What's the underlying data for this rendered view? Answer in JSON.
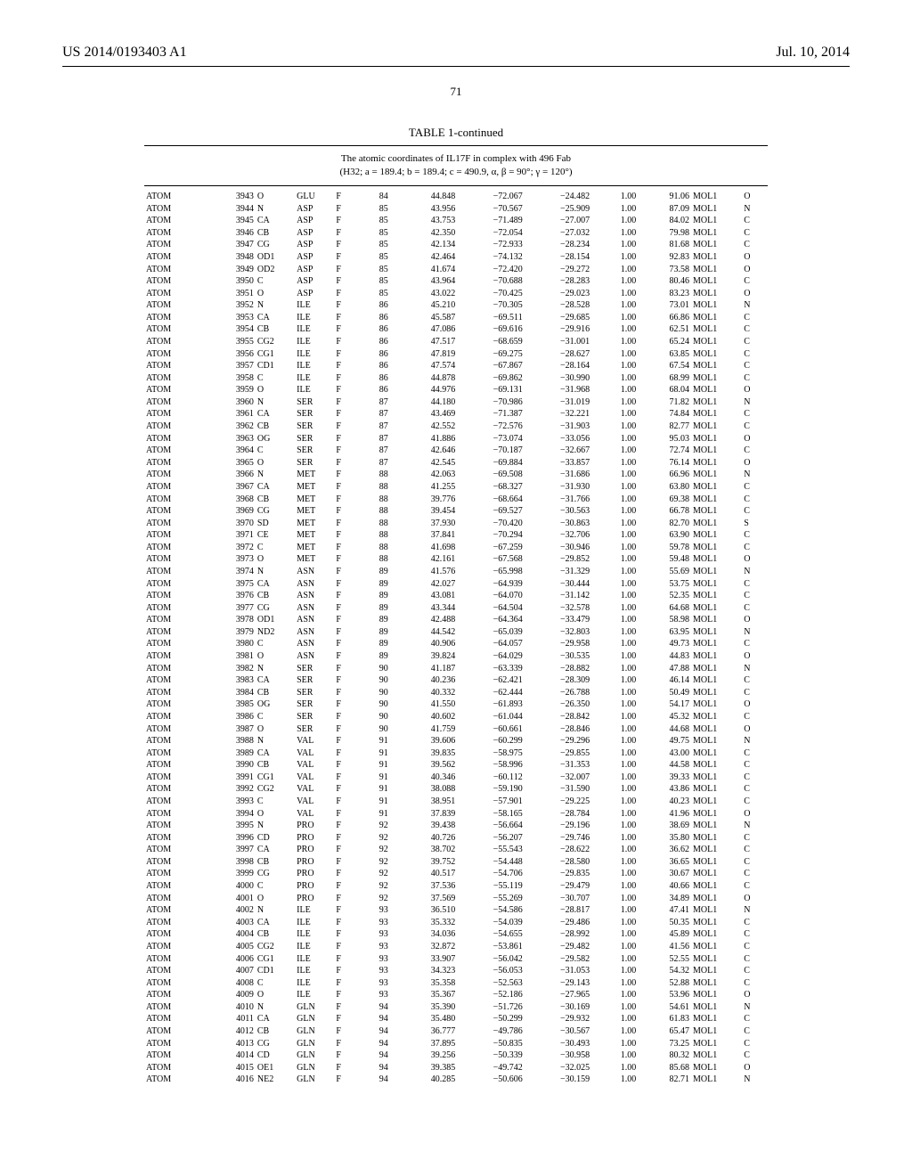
{
  "header": {
    "left": "US 2014/0193403 A1",
    "right": "Jul. 10, 2014",
    "page_number": "71"
  },
  "table": {
    "title": "TABLE 1-continued",
    "subhead_line1": "The atomic coordinates of IL17F in complex with 496 Fab",
    "subhead_line2": "(H32; a = 189.4; b = 189.4; c = 490.9, α, β = 90°; γ = 120°)",
    "rows": [
      [
        "ATOM",
        "3943",
        "O",
        "GLU",
        "F",
        "84",
        "44.848",
        "−72.067",
        "−24.482",
        "1.00",
        "91.06",
        "MOL1",
        "O"
      ],
      [
        "ATOM",
        "3944",
        "N",
        "ASP",
        "F",
        "85",
        "43.956",
        "−70.567",
        "−25.909",
        "1.00",
        "87.09",
        "MOL1",
        "N"
      ],
      [
        "ATOM",
        "3945",
        "CA",
        "ASP",
        "F",
        "85",
        "43.753",
        "−71.489",
        "−27.007",
        "1.00",
        "84.02",
        "MOL1",
        "C"
      ],
      [
        "ATOM",
        "3946",
        "CB",
        "ASP",
        "F",
        "85",
        "42.350",
        "−72.054",
        "−27.032",
        "1.00",
        "79.98",
        "MOL1",
        "C"
      ],
      [
        "ATOM",
        "3947",
        "CG",
        "ASP",
        "F",
        "85",
        "42.134",
        "−72.933",
        "−28.234",
        "1.00",
        "81.68",
        "MOL1",
        "C"
      ],
      [
        "ATOM",
        "3948",
        "OD1",
        "ASP",
        "F",
        "85",
        "42.464",
        "−74.132",
        "−28.154",
        "1.00",
        "92.83",
        "MOL1",
        "O"
      ],
      [
        "ATOM",
        "3949",
        "OD2",
        "ASP",
        "F",
        "85",
        "41.674",
        "−72.420",
        "−29.272",
        "1.00",
        "73.58",
        "MOL1",
        "O"
      ],
      [
        "ATOM",
        "3950",
        "C",
        "ASP",
        "F",
        "85",
        "43.964",
        "−70.688",
        "−28.283",
        "1.00",
        "80.46",
        "MOL1",
        "C"
      ],
      [
        "ATOM",
        "3951",
        "O",
        "ASP",
        "F",
        "85",
        "43.022",
        "−70.425",
        "−29.023",
        "1.00",
        "83.23",
        "MOL1",
        "O"
      ],
      [
        "ATOM",
        "3952",
        "N",
        "ILE",
        "F",
        "86",
        "45.210",
        "−70.305",
        "−28.528",
        "1.00",
        "73.01",
        "MOL1",
        "N"
      ],
      [
        "ATOM",
        "3953",
        "CA",
        "ILE",
        "F",
        "86",
        "45.587",
        "−69.511",
        "−29.685",
        "1.00",
        "66.86",
        "MOL1",
        "C"
      ],
      [
        "ATOM",
        "3954",
        "CB",
        "ILE",
        "F",
        "86",
        "47.086",
        "−69.616",
        "−29.916",
        "1.00",
        "62.51",
        "MOL1",
        "C"
      ],
      [
        "ATOM",
        "3955",
        "CG2",
        "ILE",
        "F",
        "86",
        "47.517",
        "−68.659",
        "−31.001",
        "1.00",
        "65.24",
        "MOL1",
        "C"
      ],
      [
        "ATOM",
        "3956",
        "CG1",
        "ILE",
        "F",
        "86",
        "47.819",
        "−69.275",
        "−28.627",
        "1.00",
        "63.85",
        "MOL1",
        "C"
      ],
      [
        "ATOM",
        "3957",
        "CD1",
        "ILE",
        "F",
        "86",
        "47.574",
        "−67.867",
        "−28.164",
        "1.00",
        "67.54",
        "MOL1",
        "C"
      ],
      [
        "ATOM",
        "3958",
        "C",
        "ILE",
        "F",
        "86",
        "44.878",
        "−69.862",
        "−30.990",
        "1.00",
        "68.99",
        "MOL1",
        "C"
      ],
      [
        "ATOM",
        "3959",
        "O",
        "ILE",
        "F",
        "86",
        "44.976",
        "−69.131",
        "−31.968",
        "1.00",
        "68.04",
        "MOL1",
        "O"
      ],
      [
        "ATOM",
        "3960",
        "N",
        "SER",
        "F",
        "87",
        "44.180",
        "−70.986",
        "−31.019",
        "1.00",
        "71.82",
        "MOL1",
        "N"
      ],
      [
        "ATOM",
        "3961",
        "CA",
        "SER",
        "F",
        "87",
        "43.469",
        "−71.387",
        "−32.221",
        "1.00",
        "74.84",
        "MOL1",
        "C"
      ],
      [
        "ATOM",
        "3962",
        "CB",
        "SER",
        "F",
        "87",
        "42.552",
        "−72.576",
        "−31.903",
        "1.00",
        "82.77",
        "MOL1",
        "C"
      ],
      [
        "ATOM",
        "3963",
        "OG",
        "SER",
        "F",
        "87",
        "41.886",
        "−73.074",
        "−33.056",
        "1.00",
        "95.03",
        "MOL1",
        "O"
      ],
      [
        "ATOM",
        "3964",
        "C",
        "SER",
        "F",
        "87",
        "42.646",
        "−70.187",
        "−32.667",
        "1.00",
        "72.74",
        "MOL1",
        "C"
      ],
      [
        "ATOM",
        "3965",
        "O",
        "SER",
        "F",
        "87",
        "42.545",
        "−69.884",
        "−33.857",
        "1.00",
        "76.14",
        "MOL1",
        "O"
      ],
      [
        "ATOM",
        "3966",
        "N",
        "MET",
        "F",
        "88",
        "42.063",
        "−69.508",
        "−31.686",
        "1.00",
        "66.96",
        "MOL1",
        "N"
      ],
      [
        "ATOM",
        "3967",
        "CA",
        "MET",
        "F",
        "88",
        "41.255",
        "−68.327",
        "−31.930",
        "1.00",
        "63.80",
        "MOL1",
        "C"
      ],
      [
        "ATOM",
        "3968",
        "CB",
        "MET",
        "F",
        "88",
        "39.776",
        "−68.664",
        "−31.766",
        "1.00",
        "69.38",
        "MOL1",
        "C"
      ],
      [
        "ATOM",
        "3969",
        "CG",
        "MET",
        "F",
        "88",
        "39.454",
        "−69.527",
        "−30.563",
        "1.00",
        "66.78",
        "MOL1",
        "C"
      ],
      [
        "ATOM",
        "3970",
        "SD",
        "MET",
        "F",
        "88",
        "37.930",
        "−70.420",
        "−30.863",
        "1.00",
        "82.70",
        "MOL1",
        "S"
      ],
      [
        "ATOM",
        "3971",
        "CE",
        "MET",
        "F",
        "88",
        "37.841",
        "−70.294",
        "−32.706",
        "1.00",
        "63.90",
        "MOL1",
        "C"
      ],
      [
        "ATOM",
        "3972",
        "C",
        "MET",
        "F",
        "88",
        "41.698",
        "−67.259",
        "−30.946",
        "1.00",
        "59.78",
        "MOL1",
        "C"
      ],
      [
        "ATOM",
        "3973",
        "O",
        "MET",
        "F",
        "88",
        "42.161",
        "−67.568",
        "−29.852",
        "1.00",
        "59.48",
        "MOL1",
        "O"
      ],
      [
        "ATOM",
        "3974",
        "N",
        "ASN",
        "F",
        "89",
        "41.576",
        "−65.998",
        "−31.329",
        "1.00",
        "55.69",
        "MOL1",
        "N"
      ],
      [
        "ATOM",
        "3975",
        "CA",
        "ASN",
        "F",
        "89",
        "42.027",
        "−64.939",
        "−30.444",
        "1.00",
        "53.75",
        "MOL1",
        "C"
      ],
      [
        "ATOM",
        "3976",
        "CB",
        "ASN",
        "F",
        "89",
        "43.081",
        "−64.070",
        "−31.142",
        "1.00",
        "52.35",
        "MOL1",
        "C"
      ],
      [
        "ATOM",
        "3977",
        "CG",
        "ASN",
        "F",
        "89",
        "43.344",
        "−64.504",
        "−32.578",
        "1.00",
        "64.68",
        "MOL1",
        "C"
      ],
      [
        "ATOM",
        "3978",
        "OD1",
        "ASN",
        "F",
        "89",
        "42.488",
        "−64.364",
        "−33.479",
        "1.00",
        "58.98",
        "MOL1",
        "O"
      ],
      [
        "ATOM",
        "3979",
        "ND2",
        "ASN",
        "F",
        "89",
        "44.542",
        "−65.039",
        "−32.803",
        "1.00",
        "63.95",
        "MOL1",
        "N"
      ],
      [
        "ATOM",
        "3980",
        "C",
        "ASN",
        "F",
        "89",
        "40.906",
        "−64.057",
        "−29.958",
        "1.00",
        "49.73",
        "MOL1",
        "C"
      ],
      [
        "ATOM",
        "3981",
        "O",
        "ASN",
        "F",
        "89",
        "39.824",
        "−64.029",
        "−30.535",
        "1.00",
        "44.83",
        "MOL1",
        "O"
      ],
      [
        "ATOM",
        "3982",
        "N",
        "SER",
        "F",
        "90",
        "41.187",
        "−63.339",
        "−28.882",
        "1.00",
        "47.88",
        "MOL1",
        "N"
      ],
      [
        "ATOM",
        "3983",
        "CA",
        "SER",
        "F",
        "90",
        "40.236",
        "−62.421",
        "−28.309",
        "1.00",
        "46.14",
        "MOL1",
        "C"
      ],
      [
        "ATOM",
        "3984",
        "CB",
        "SER",
        "F",
        "90",
        "40.332",
        "−62.444",
        "−26.788",
        "1.00",
        "50.49",
        "MOL1",
        "C"
      ],
      [
        "ATOM",
        "3985",
        "OG",
        "SER",
        "F",
        "90",
        "41.550",
        "−61.893",
        "−26.350",
        "1.00",
        "54.17",
        "MOL1",
        "O"
      ],
      [
        "ATOM",
        "3986",
        "C",
        "SER",
        "F",
        "90",
        "40.602",
        "−61.044",
        "−28.842",
        "1.00",
        "45.32",
        "MOL1",
        "C"
      ],
      [
        "ATOM",
        "3987",
        "O",
        "SER",
        "F",
        "90",
        "41.759",
        "−60.661",
        "−28.846",
        "1.00",
        "44.68",
        "MOL1",
        "O"
      ],
      [
        "ATOM",
        "3988",
        "N",
        "VAL",
        "F",
        "91",
        "39.606",
        "−60.299",
        "−29.296",
        "1.00",
        "49.75",
        "MOL1",
        "N"
      ],
      [
        "ATOM",
        "3989",
        "CA",
        "VAL",
        "F",
        "91",
        "39.835",
        "−58.975",
        "−29.855",
        "1.00",
        "43.00",
        "MOL1",
        "C"
      ],
      [
        "ATOM",
        "3990",
        "CB",
        "VAL",
        "F",
        "91",
        "39.562",
        "−58.996",
        "−31.353",
        "1.00",
        "44.58",
        "MOL1",
        "C"
      ],
      [
        "ATOM",
        "3991",
        "CG1",
        "VAL",
        "F",
        "91",
        "40.346",
        "−60.112",
        "−32.007",
        "1.00",
        "39.33",
        "MOL1",
        "C"
      ],
      [
        "ATOM",
        "3992",
        "CG2",
        "VAL",
        "F",
        "91",
        "38.088",
        "−59.190",
        "−31.590",
        "1.00",
        "43.86",
        "MOL1",
        "C"
      ],
      [
        "ATOM",
        "3993",
        "C",
        "VAL",
        "F",
        "91",
        "38.951",
        "−57.901",
        "−29.225",
        "1.00",
        "40.23",
        "MOL1",
        "C"
      ],
      [
        "ATOM",
        "3994",
        "O",
        "VAL",
        "F",
        "91",
        "37.839",
        "−58.165",
        "−28.784",
        "1.00",
        "41.96",
        "MOL1",
        "O"
      ],
      [
        "ATOM",
        "3995",
        "N",
        "PRO",
        "F",
        "92",
        "39.438",
        "−56.664",
        "−29.196",
        "1.00",
        "38.69",
        "MOL1",
        "N"
      ],
      [
        "ATOM",
        "3996",
        "CD",
        "PRO",
        "F",
        "92",
        "40.726",
        "−56.207",
        "−29.746",
        "1.00",
        "35.80",
        "MOL1",
        "C"
      ],
      [
        "ATOM",
        "3997",
        "CA",
        "PRO",
        "F",
        "92",
        "38.702",
        "−55.543",
        "−28.622",
        "1.00",
        "36.62",
        "MOL1",
        "C"
      ],
      [
        "ATOM",
        "3998",
        "CB",
        "PRO",
        "F",
        "92",
        "39.752",
        "−54.448",
        "−28.580",
        "1.00",
        "36.65",
        "MOL1",
        "C"
      ],
      [
        "ATOM",
        "3999",
        "CG",
        "PRO",
        "F",
        "92",
        "40.517",
        "−54.706",
        "−29.835",
        "1.00",
        "30.67",
        "MOL1",
        "C"
      ],
      [
        "ATOM",
        "4000",
        "C",
        "PRO",
        "F",
        "92",
        "37.536",
        "−55.119",
        "−29.479",
        "1.00",
        "40.66",
        "MOL1",
        "C"
      ],
      [
        "ATOM",
        "4001",
        "O",
        "PRO",
        "F",
        "92",
        "37.569",
        "−55.269",
        "−30.707",
        "1.00",
        "34.89",
        "MOL1",
        "O"
      ],
      [
        "ATOM",
        "4002",
        "N",
        "ILE",
        "F",
        "93",
        "36.510",
        "−54.586",
        "−28.817",
        "1.00",
        "47.41",
        "MOL1",
        "N"
      ],
      [
        "ATOM",
        "4003",
        "CA",
        "ILE",
        "F",
        "93",
        "35.332",
        "−54.039",
        "−29.486",
        "1.00",
        "50.35",
        "MOL1",
        "C"
      ],
      [
        "ATOM",
        "4004",
        "CB",
        "ILE",
        "F",
        "93",
        "34.036",
        "−54.655",
        "−28.992",
        "1.00",
        "45.89",
        "MOL1",
        "C"
      ],
      [
        "ATOM",
        "4005",
        "CG2",
        "ILE",
        "F",
        "93",
        "32.872",
        "−53.861",
        "−29.482",
        "1.00",
        "41.56",
        "MOL1",
        "C"
      ],
      [
        "ATOM",
        "4006",
        "CG1",
        "ILE",
        "F",
        "93",
        "33.907",
        "−56.042",
        "−29.582",
        "1.00",
        "52.55",
        "MOL1",
        "C"
      ],
      [
        "ATOM",
        "4007",
        "CD1",
        "ILE",
        "F",
        "93",
        "34.323",
        "−56.053",
        "−31.053",
        "1.00",
        "54.32",
        "MOL1",
        "C"
      ],
      [
        "ATOM",
        "4008",
        "C",
        "ILE",
        "F",
        "93",
        "35.358",
        "−52.563",
        "−29.143",
        "1.00",
        "52.88",
        "MOL1",
        "C"
      ],
      [
        "ATOM",
        "4009",
        "O",
        "ILE",
        "F",
        "93",
        "35.367",
        "−52.186",
        "−27.965",
        "1.00",
        "53.96",
        "MOL1",
        "O"
      ],
      [
        "ATOM",
        "4010",
        "N",
        "GLN",
        "F",
        "94",
        "35.390",
        "−51.726",
        "−30.169",
        "1.00",
        "54.61",
        "MOL1",
        "N"
      ],
      [
        "ATOM",
        "4011",
        "CA",
        "GLN",
        "F",
        "94",
        "35.480",
        "−50.299",
        "−29.932",
        "1.00",
        "61.83",
        "MOL1",
        "C"
      ],
      [
        "ATOM",
        "4012",
        "CB",
        "GLN",
        "F",
        "94",
        "36.777",
        "−49.786",
        "−30.567",
        "1.00",
        "65.47",
        "MOL1",
        "C"
      ],
      [
        "ATOM",
        "4013",
        "CG",
        "GLN",
        "F",
        "94",
        "37.895",
        "−50.835",
        "−30.493",
        "1.00",
        "73.25",
        "MOL1",
        "C"
      ],
      [
        "ATOM",
        "4014",
        "CD",
        "GLN",
        "F",
        "94",
        "39.256",
        "−50.339",
        "−30.958",
        "1.00",
        "80.32",
        "MOL1",
        "C"
      ],
      [
        "ATOM",
        "4015",
        "OE1",
        "GLN",
        "F",
        "94",
        "39.385",
        "−49.742",
        "−32.025",
        "1.00",
        "85.68",
        "MOL1",
        "O"
      ],
      [
        "ATOM",
        "4016",
        "NE2",
        "GLN",
        "F",
        "94",
        "40.285",
        "−50.606",
        "−30.159",
        "1.00",
        "82.71",
        "MOL1",
        "N"
      ]
    ]
  }
}
